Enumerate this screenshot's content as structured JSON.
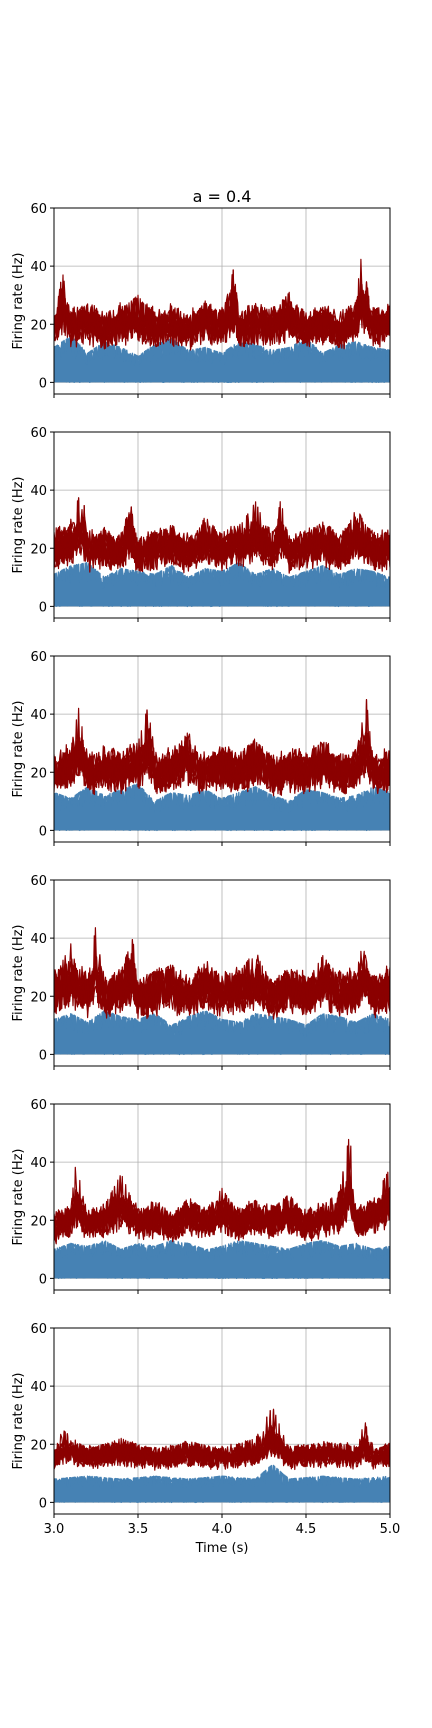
{
  "figure": {
    "title": "a = 0.4",
    "xlabel": "Time (s)"
  },
  "colors": {
    "excitatory": "#4682b4",
    "inhibitory": "#8b0000",
    "grid": "#b0b0b0",
    "axes": "#000000"
  },
  "chart_data": [
    {
      "type": "line",
      "title": "a = 0.4",
      "xlabel": "",
      "ylabel": "Firing rate (Hz)",
      "xlim": [
        3.0,
        5.0
      ],
      "ylim": [
        -4,
        60
      ],
      "xticks": [
        3.0,
        3.5,
        4.0,
        4.5,
        5.0
      ],
      "yticks": [
        0,
        20,
        40,
        60
      ],
      "show_xticklabels": false,
      "grid": true,
      "series": [
        {
          "color": "#4682b4",
          "band": [
            0,
            14
          ],
          "x": [
            3.0,
            3.1,
            3.2,
            3.3,
            3.4,
            3.5,
            3.6,
            3.7,
            3.8,
            3.9,
            4.0,
            4.1,
            4.2,
            4.3,
            4.4,
            4.5,
            4.6,
            4.7,
            4.8,
            4.9,
            5.0
          ],
          "y": [
            12,
            16,
            10,
            14,
            12,
            9,
            13,
            15,
            11,
            12,
            10,
            14,
            13,
            11,
            12,
            15,
            10,
            13,
            14,
            12,
            11
          ]
        },
        {
          "color": "#8b0000",
          "band": [
            10,
            28
          ],
          "x": [
            3.0,
            3.05,
            3.1,
            3.2,
            3.3,
            3.4,
            3.5,
            3.6,
            3.7,
            3.8,
            3.9,
            4.0,
            4.08,
            4.1,
            4.2,
            4.3,
            4.4,
            4.5,
            4.6,
            4.7,
            4.8,
            4.83,
            4.9,
            5.0
          ],
          "y": [
            20,
            38,
            22,
            27,
            18,
            25,
            30,
            21,
            24,
            19,
            28,
            22,
            42,
            20,
            26,
            23,
            31,
            21,
            25,
            19,
            29,
            44,
            22,
            25
          ]
        }
      ]
    },
    {
      "type": "line",
      "title": "",
      "xlabel": "",
      "ylabel": "Firing rate (Hz)",
      "xlim": [
        3.0,
        5.0
      ],
      "ylim": [
        -4,
        60
      ],
      "xticks": [
        3.0,
        3.5,
        4.0,
        4.5,
        5.0
      ],
      "yticks": [
        0,
        20,
        40,
        60
      ],
      "show_xticklabels": false,
      "grid": true,
      "series": [
        {
          "color": "#4682b4",
          "band": [
            0,
            14
          ],
          "x": [
            3.0,
            3.1,
            3.2,
            3.3,
            3.4,
            3.5,
            3.6,
            3.7,
            3.8,
            3.9,
            4.0,
            4.1,
            4.2,
            4.3,
            4.4,
            4.5,
            4.6,
            4.7,
            4.8,
            4.9,
            5.0
          ],
          "y": [
            11,
            14,
            15,
            10,
            13,
            12,
            11,
            14,
            10,
            13,
            12,
            15,
            11,
            13,
            10,
            12,
            14,
            11,
            13,
            12,
            10
          ]
        },
        {
          "color": "#8b0000",
          "band": [
            10,
            28
          ],
          "x": [
            3.0,
            3.1,
            3.17,
            3.2,
            3.3,
            3.4,
            3.45,
            3.5,
            3.6,
            3.7,
            3.8,
            3.9,
            4.0,
            4.1,
            4.2,
            4.3,
            4.35,
            4.4,
            4.5,
            4.6,
            4.7,
            4.8,
            4.9,
            5.0
          ],
          "y": [
            25,
            30,
            41,
            22,
            26,
            21,
            38,
            19,
            24,
            28,
            20,
            31,
            23,
            27,
            36,
            22,
            37,
            20,
            25,
            29,
            21,
            34,
            23,
            24
          ]
        }
      ]
    },
    {
      "type": "line",
      "title": "",
      "xlabel": "",
      "ylabel": "Firing rate (Hz)",
      "xlim": [
        3.0,
        5.0
      ],
      "ylim": [
        -4,
        60
      ],
      "xticks": [
        3.0,
        3.5,
        4.0,
        4.5,
        5.0
      ],
      "yticks": [
        0,
        20,
        40,
        60
      ],
      "show_xticklabels": false,
      "grid": true,
      "series": [
        {
          "color": "#4682b4",
          "band": [
            0,
            16
          ],
          "x": [
            3.0,
            3.1,
            3.2,
            3.3,
            3.4,
            3.5,
            3.6,
            3.7,
            3.8,
            3.9,
            4.0,
            4.1,
            4.2,
            4.3,
            4.4,
            4.5,
            4.6,
            4.7,
            4.8,
            4.9,
            5.0
          ],
          "y": [
            13,
            11,
            15,
            12,
            14,
            16,
            10,
            13,
            12,
            14,
            11,
            13,
            15,
            12,
            10,
            14,
            13,
            11,
            12,
            15,
            13
          ]
        },
        {
          "color": "#8b0000",
          "band": [
            10,
            30
          ],
          "x": [
            3.0,
            3.1,
            3.15,
            3.2,
            3.3,
            3.4,
            3.5,
            3.57,
            3.6,
            3.7,
            3.8,
            3.9,
            4.0,
            4.1,
            4.2,
            4.3,
            4.4,
            4.5,
            4.6,
            4.7,
            4.8,
            4.86,
            4.9,
            5.0
          ],
          "y": [
            22,
            28,
            43,
            21,
            27,
            24,
            30,
            45,
            22,
            26,
            34,
            21,
            28,
            23,
            32,
            20,
            26,
            24,
            31,
            22,
            27,
            45,
            23,
            26
          ]
        }
      ]
    },
    {
      "type": "line",
      "title": "",
      "xlabel": "",
      "ylabel": "Firing rate (Hz)",
      "xlim": [
        3.0,
        5.0
      ],
      "ylim": [
        -4,
        60
      ],
      "xticks": [
        3.0,
        3.5,
        4.0,
        4.5,
        5.0
      ],
      "yticks": [
        0,
        20,
        40,
        60
      ],
      "show_xticklabels": false,
      "grid": true,
      "series": [
        {
          "color": "#4682b4",
          "band": [
            0,
            15
          ],
          "x": [
            3.0,
            3.1,
            3.2,
            3.3,
            3.4,
            3.5,
            3.6,
            3.7,
            3.8,
            3.9,
            4.0,
            4.1,
            4.2,
            4.3,
            4.4,
            4.5,
            4.6,
            4.7,
            4.8,
            4.9,
            5.0
          ],
          "y": [
            12,
            14,
            11,
            15,
            13,
            12,
            14,
            10,
            13,
            15,
            12,
            11,
            14,
            13,
            12,
            10,
            14,
            13,
            11,
            14,
            12
          ]
        },
        {
          "color": "#8b0000",
          "band": [
            10,
            30
          ],
          "x": [
            3.0,
            3.1,
            3.2,
            3.25,
            3.3,
            3.4,
            3.47,
            3.5,
            3.6,
            3.7,
            3.8,
            3.9,
            4.0,
            4.1,
            4.2,
            4.3,
            4.4,
            4.5,
            4.6,
            4.7,
            4.8,
            4.85,
            4.9,
            5.0
          ],
          "y": [
            26,
            38,
            24,
            45,
            22,
            29,
            40,
            21,
            27,
            31,
            23,
            33,
            25,
            28,
            36,
            22,
            30,
            24,
            34,
            26,
            28,
            42,
            24,
            30
          ]
        }
      ]
    },
    {
      "type": "line",
      "title": "",
      "xlabel": "",
      "ylabel": "Firing rate (Hz)",
      "xlim": [
        3.0,
        5.0
      ],
      "ylim": [
        -4,
        60
      ],
      "xticks": [
        3.0,
        3.5,
        4.0,
        4.5,
        5.0
      ],
      "yticks": [
        0,
        20,
        40,
        60
      ],
      "show_xticklabels": false,
      "grid": true,
      "series": [
        {
          "color": "#4682b4",
          "band": [
            0,
            13
          ],
          "x": [
            3.0,
            3.1,
            3.2,
            3.3,
            3.4,
            3.5,
            3.6,
            3.7,
            3.8,
            3.9,
            4.0,
            4.1,
            4.2,
            4.3,
            4.4,
            4.5,
            4.6,
            4.7,
            4.8,
            4.9,
            5.0
          ],
          "y": [
            10,
            12,
            11,
            13,
            10,
            12,
            11,
            13,
            12,
            10,
            11,
            13,
            12,
            11,
            10,
            12,
            13,
            11,
            12,
            10,
            11
          ]
        },
        {
          "color": "#8b0000",
          "band": [
            12,
            26
          ],
          "x": [
            3.0,
            3.1,
            3.13,
            3.2,
            3.3,
            3.4,
            3.5,
            3.6,
            3.7,
            3.8,
            3.9,
            4.0,
            4.1,
            4.2,
            4.3,
            4.4,
            4.5,
            4.6,
            4.7,
            4.76,
            4.8,
            4.9,
            5.0
          ],
          "y": [
            18,
            24,
            40,
            21,
            25,
            36,
            22,
            26,
            20,
            28,
            23,
            31,
            22,
            27,
            24,
            29,
            21,
            25,
            30,
            50,
            23,
            27,
            38
          ]
        }
      ]
    },
    {
      "type": "line",
      "title": "",
      "xlabel": "Time (s)",
      "ylabel": "Firing rate (Hz)",
      "xlim": [
        3.0,
        5.0
      ],
      "ylim": [
        -4,
        60
      ],
      "xticks": [
        3.0,
        3.5,
        4.0,
        4.5,
        5.0
      ],
      "yticks": [
        0,
        20,
        40,
        60
      ],
      "xticklabels": [
        "3.0",
        "3.5",
        "4.0",
        "4.5",
        "5.0"
      ],
      "show_xticklabels": true,
      "grid": true,
      "series": [
        {
          "color": "#4682b4",
          "band": [
            0,
            10
          ],
          "x": [
            3.0,
            3.2,
            3.4,
            3.6,
            3.8,
            4.0,
            4.2,
            4.3,
            4.4,
            4.6,
            4.8,
            5.0
          ],
          "y": [
            8,
            9,
            8,
            9,
            8,
            9,
            8,
            13,
            8,
            9,
            8,
            9
          ]
        },
        {
          "color": "#8b0000",
          "band": [
            11,
            20
          ],
          "x": [
            3.0,
            3.05,
            3.2,
            3.4,
            3.6,
            3.8,
            4.0,
            4.2,
            4.3,
            4.4,
            4.6,
            4.8,
            4.85,
            4.9,
            5.0
          ],
          "y": [
            17,
            25,
            18,
            22,
            17,
            21,
            18,
            22,
            33,
            18,
            21,
            19,
            28,
            18,
            20
          ]
        }
      ]
    }
  ]
}
